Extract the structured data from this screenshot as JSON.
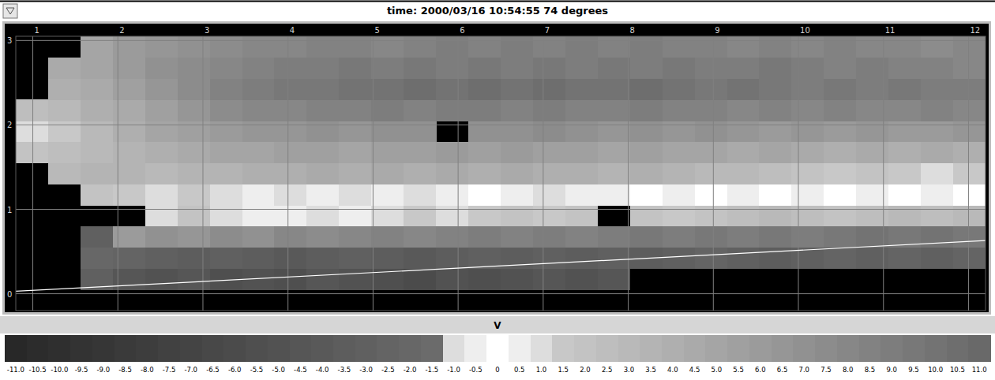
{
  "chart_data": {
    "type": "heatmap",
    "title": "time: 2000/03/16 10:54:55 74 degrees",
    "xlim": [
      0.8,
      12.2
    ],
    "ylim": [
      -0.2,
      3.05
    ],
    "xticks": [
      1,
      2,
      3,
      4,
      5,
      6,
      7,
      8,
      9,
      10,
      11,
      12
    ],
    "yticks": [
      0,
      1,
      2,
      3
    ],
    "grid": true,
    "x_edges": [
      0.8,
      1.18,
      1.56,
      1.94,
      2.32,
      2.7,
      3.08,
      3.46,
      3.84,
      4.22,
      4.6,
      4.98,
      5.36,
      5.74,
      6.12,
      6.5,
      6.88,
      7.26,
      7.64,
      8.02,
      8.4,
      8.78,
      9.16,
      9.54,
      9.92,
      10.3,
      10.68,
      11.06,
      11.44,
      11.82,
      12.2
    ],
    "y_edges": [
      -0.2,
      0.05,
      0.3,
      0.55,
      0.8,
      1.05,
      1.3,
      1.55,
      1.8,
      2.05,
      2.3,
      2.55,
      2.8,
      3.05
    ],
    "cells": [
      [
        null,
        null,
        null,
        null,
        null,
        null,
        null,
        null,
        null,
        null,
        null,
        null,
        null,
        null,
        null,
        null,
        null,
        null,
        null,
        null,
        null,
        null,
        null,
        null,
        null,
        null,
        null,
        null,
        null,
        null
      ],
      [
        null,
        null,
        -3,
        -4.5,
        -5,
        -4.5,
        -5.5,
        -5,
        -5.5,
        -4.5,
        -5,
        -5.5,
        -6,
        -5,
        -5.5,
        -5,
        -4.5,
        -5,
        -4.5,
        null,
        null,
        null,
        null,
        null,
        null,
        null,
        null,
        null,
        null,
        null
      ],
      [
        null,
        null,
        -2,
        -2.5,
        -3,
        -3.5,
        -3,
        -3.5,
        -4,
        -3.5,
        -3,
        -3.5,
        -4,
        -3.5,
        -3,
        -3.5,
        -3,
        -3.5,
        -3,
        -3.5,
        -3,
        -2.5,
        -3,
        -3.5,
        -3,
        -2.5,
        -3,
        -2.5,
        -3,
        -2.5
      ],
      [
        null,
        null,
        -3,
        6,
        7,
        6.5,
        7.5,
        7,
        8,
        7.5,
        8,
        8.5,
        8,
        8.5,
        9,
        8.5,
        9,
        8.5,
        9,
        9.5,
        9,
        9.5,
        9,
        9.5,
        9,
        9.5,
        10,
        9.5,
        10,
        9.5
      ],
      [
        null,
        null,
        null,
        null,
        1,
        2,
        1,
        0.5,
        0.5,
        1,
        0.5,
        1,
        1.5,
        1,
        1.5,
        2,
        1.5,
        2,
        null,
        2,
        1.5,
        2,
        2.5,
        3,
        2.5,
        2,
        2.5,
        3,
        2.5,
        3
      ],
      [
        null,
        null,
        2,
        1.5,
        1,
        1.5,
        1,
        0.5,
        1,
        0.5,
        1,
        0.5,
        1,
        0.5,
        0,
        0.5,
        1,
        0.5,
        0.5,
        0,
        0.5,
        0,
        0.5,
        0,
        0.5,
        0,
        0.5,
        0,
        0.5,
        0
      ],
      [
        null,
        3,
        3.5,
        3.5,
        3,
        3.5,
        3.5,
        4,
        4,
        4.5,
        4,
        4.5,
        4,
        4.5,
        4,
        4.5,
        4,
        4,
        3.5,
        4,
        3.5,
        3,
        3,
        2.5,
        2,
        1.5,
        2,
        1.5,
        1,
        1.5
      ],
      [
        2,
        2.5,
        3,
        3.5,
        4,
        4.5,
        5,
        5,
        5.5,
        5.5,
        5,
        5.5,
        5.5,
        6,
        5.5,
        6,
        5.5,
        5.5,
        5,
        5.5,
        5,
        5,
        4.5,
        5,
        4.5,
        4,
        4.5,
        4,
        4.5,
        4
      ],
      [
        1,
        1.5,
        3,
        4,
        5,
        5.5,
        6,
        6.5,
        6.5,
        7,
        6.5,
        7,
        7,
        null,
        7,
        7,
        7.5,
        7,
        6.5,
        7,
        6.5,
        7,
        6.5,
        6,
        6.5,
        6,
        6.5,
        6,
        6,
        6.5
      ],
      [
        2.5,
        3,
        4,
        4.5,
        5.5,
        6.5,
        7.5,
        8,
        8,
        8.5,
        8.5,
        9,
        8.5,
        9,
        9,
        8.5,
        9,
        8.5,
        8.5,
        9,
        8.5,
        8.5,
        8,
        8.5,
        8,
        8.5,
        8,
        8,
        8.5,
        8
      ],
      [
        null,
        4,
        4.5,
        5.5,
        6.5,
        7.5,
        8.5,
        9,
        9.5,
        9.5,
        10,
        10,
        10.5,
        10,
        10.5,
        10,
        10.5,
        10,
        10,
        10.5,
        10,
        9.5,
        10,
        9.5,
        9,
        9.5,
        9,
        9.5,
        9,
        9
      ],
      [
        null,
        4.5,
        5,
        6,
        7,
        7.5,
        8,
        8.5,
        9,
        9,
        9.5,
        9,
        9.5,
        9,
        9.5,
        9,
        9.5,
        9,
        9.5,
        9,
        9.5,
        9,
        9,
        9.5,
        9,
        8.5,
        9,
        8.5,
        8.5,
        8
      ],
      [
        null,
        null,
        5,
        6,
        6.5,
        7,
        7.5,
        8,
        8,
        8.5,
        8.5,
        8,
        8.5,
        9,
        8.5,
        9,
        8.5,
        9,
        8.5,
        9,
        8.5,
        8.5,
        8,
        8.5,
        8,
        8.5,
        8,
        8,
        7.5,
        8
      ]
    ],
    "reference_line": {
      "x": [
        0.8,
        12.2
      ],
      "y": [
        0.03,
        0.63
      ]
    },
    "colorbar": {
      "label": "V",
      "range": [
        -11,
        11
      ],
      "ticks": [
        {
          "value": -11,
          "label": "-11.0"
        },
        -10.5,
        {
          "value": -10,
          "label": "-10.0"
        },
        -9.5,
        {
          "value": -9,
          "label": "-9.0"
        },
        -8.5,
        {
          "value": -8,
          "label": "-8.0"
        },
        -7.5,
        {
          "value": -7,
          "label": "-7.0"
        },
        -6.5,
        {
          "value": -6,
          "label": "-6.0"
        },
        -5.5,
        {
          "value": -5,
          "label": "-5.0"
        },
        -4.5,
        {
          "value": -4,
          "label": "-4.0"
        },
        -3.5,
        {
          "value": -3,
          "label": "-3.0"
        },
        -2.5,
        {
          "value": -2,
          "label": "-2.0"
        },
        -1.5,
        {
          "value": -1,
          "label": "-1.0"
        },
        -0.5,
        0,
        0.5,
        {
          "value": 1,
          "label": "1.0"
        },
        1.5,
        {
          "value": 2,
          "label": "2.0"
        },
        2.5,
        {
          "value": 3,
          "label": "3.0"
        },
        3.5,
        {
          "value": 4,
          "label": "4.0"
        },
        4.5,
        {
          "value": 5,
          "label": "5.0"
        },
        5.5,
        {
          "value": 6,
          "label": "6.0"
        },
        6.5,
        {
          "value": 7,
          "label": "7.0"
        },
        7.5,
        {
          "value": 8,
          "label": "8.0"
        },
        8.5,
        {
          "value": 9,
          "label": "9.0"
        },
        9.5,
        {
          "value": 10,
          "label": "10.0"
        },
        10.5,
        {
          "value": 11,
          "label": "11.0"
        }
      ],
      "colors": [
        "#282828",
        "#2c2c2c",
        "#2f2f2f",
        "#333333",
        "#363636",
        "#3a3a3a",
        "#3d3d3d",
        "#414141",
        "#444444",
        "#484848",
        "#4b4b4b",
        "#4f4f4f",
        "#525252",
        "#565656",
        "#595959",
        "#5d5d5d",
        "#606060",
        "#646464",
        "#676767",
        "#6b6b6b",
        "#dddddd",
        "#eeeeee",
        "#ffffff",
        "#eeeeee",
        "#dddddd",
        "#c8c8c8",
        "#c3c3c3",
        "#bebebe",
        "#b9b9b9",
        "#b4b4b4",
        "#afafaf",
        "#aaaaaa",
        "#a5a5a5",
        "#a0a0a0",
        "#9b9b9b",
        "#969696",
        "#919191",
        "#8c8c8c",
        "#878787",
        "#828282",
        "#7d7d7d",
        "#787878",
        "#737373",
        "#6e6e6e",
        "#696969"
      ]
    }
  }
}
